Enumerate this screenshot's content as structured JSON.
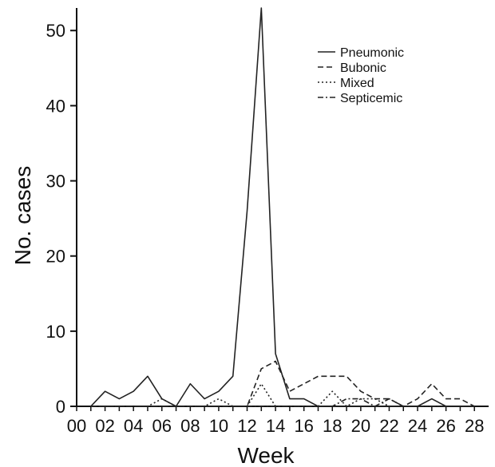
{
  "chart_data": {
    "type": "line",
    "title": "",
    "xlabel": "Week",
    "ylabel": "No. cases",
    "x": [
      1,
      2,
      3,
      4,
      5,
      6,
      7,
      8,
      9,
      10,
      11,
      12,
      13,
      14,
      15,
      16,
      17,
      18,
      19,
      20,
      21,
      22,
      23,
      24,
      25,
      26,
      27,
      28
    ],
    "xlim": [
      0,
      29
    ],
    "ylim": [
      0,
      53
    ],
    "x_ticks": [
      "00",
      "02",
      "04",
      "06",
      "08",
      "10",
      "12",
      "14",
      "16",
      "18",
      "20",
      "22",
      "24",
      "26",
      "28"
    ],
    "y_ticks": [
      "0",
      "10",
      "20",
      "30",
      "40",
      "50"
    ],
    "grid": false,
    "legend_position": "top-right",
    "colors": {
      "line": "#222222",
      "axis": "#111111"
    },
    "series": [
      {
        "name": "Pneumonic",
        "dash": "solid",
        "values": [
          0,
          2,
          1,
          2,
          4,
          1,
          0,
          3,
          1,
          2,
          4,
          26,
          53,
          7,
          1,
          1,
          0,
          0,
          0,
          0,
          0,
          0,
          0,
          0,
          1,
          0,
          0,
          0
        ]
      },
      {
        "name": "Bubonic",
        "dash": "dashed",
        "values": [
          0,
          0,
          0,
          0,
          0,
          0,
          0,
          0,
          0,
          0,
          0,
          0,
          5,
          6,
          2,
          3,
          4,
          4,
          4,
          2,
          1,
          1,
          0,
          1,
          3,
          1,
          1,
          0
        ]
      },
      {
        "name": "Mixed",
        "dash": "dotted",
        "values": [
          0,
          0,
          0,
          0,
          0,
          1,
          0,
          0,
          0,
          1,
          0,
          0,
          3,
          0,
          0,
          0,
          0,
          2,
          0,
          1,
          1,
          0,
          0,
          0,
          0,
          0,
          0,
          0
        ]
      },
      {
        "name": "Septicemic",
        "dash": "dashdot",
        "values": [
          0,
          0,
          0,
          0,
          0,
          0,
          0,
          0,
          0,
          0,
          0,
          0,
          0,
          0,
          0,
          0,
          0,
          0,
          1,
          1,
          0,
          1,
          0,
          0,
          0,
          0,
          0,
          0
        ]
      }
    ]
  }
}
